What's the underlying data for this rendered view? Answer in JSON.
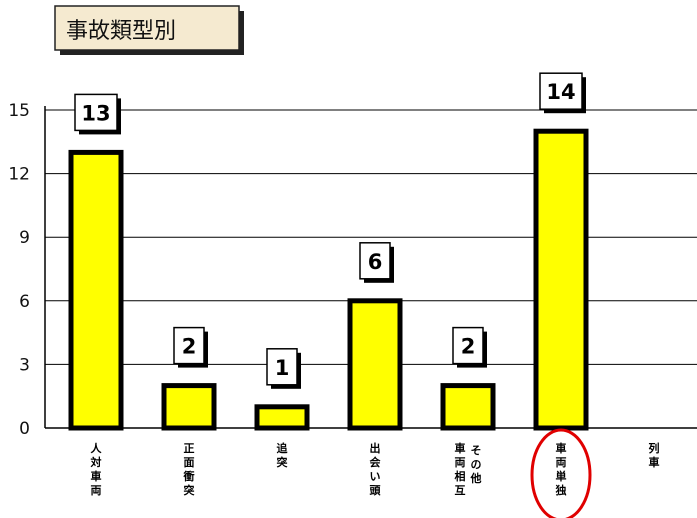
{
  "chart_data": {
    "type": "bar",
    "title": "事故類型別",
    "xlabel": "",
    "ylabel": "",
    "ylim": [
      0,
      15
    ],
    "yticks": [
      0,
      3,
      6,
      9,
      12,
      15
    ],
    "grid": true,
    "legend": "none",
    "categories": [
      "人対車両",
      "正面衝突",
      "追突",
      "出会い頭",
      "車両相互 その他",
      "車両単独",
      "列車"
    ],
    "values": [
      13,
      2,
      1,
      6,
      2,
      14,
      0
    ],
    "bar_color": "#ffff00",
    "highlight_category": "車両単独",
    "highlight_color": "#e00000"
  }
}
